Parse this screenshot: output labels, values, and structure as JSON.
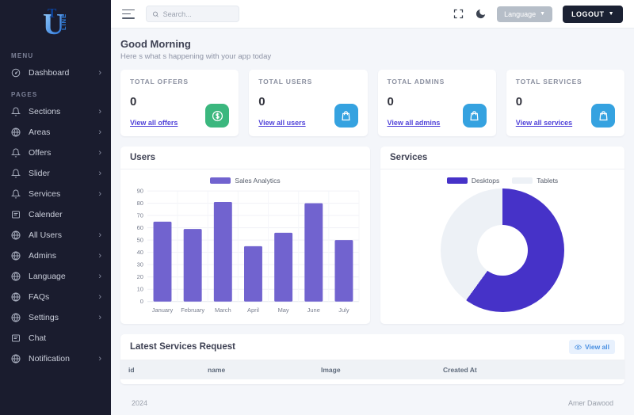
{
  "app": {
    "logo_main": "U",
    "logo_top": "T",
    "logo_side": "LINE"
  },
  "topbar": {
    "search_placeholder": "Search...",
    "language_label": "Language",
    "logout_label": "LOGOUT"
  },
  "sidebar": {
    "sections": [
      {
        "label": "MENU",
        "items": [
          {
            "label": "Dashboard",
            "icon": "speedometer-icon",
            "chevron": true
          }
        ]
      },
      {
        "label": "PAGES",
        "items": [
          {
            "label": "Sections",
            "icon": "bell-icon",
            "chevron": true
          },
          {
            "label": "Areas",
            "icon": "globe-icon",
            "chevron": true
          },
          {
            "label": "Offers",
            "icon": "bell-icon",
            "chevron": true
          },
          {
            "label": "Slider",
            "icon": "bell-icon",
            "chevron": true
          },
          {
            "label": "Services",
            "icon": "bell-icon",
            "chevron": true
          },
          {
            "label": "Calender",
            "icon": "card-icon",
            "chevron": false
          },
          {
            "label": "All Users",
            "icon": "globe-icon",
            "chevron": true
          },
          {
            "label": "Admins",
            "icon": "globe-icon",
            "chevron": true
          },
          {
            "label": "Language",
            "icon": "globe-icon",
            "chevron": true
          },
          {
            "label": "FAQs",
            "icon": "globe-icon",
            "chevron": true
          },
          {
            "label": "Settings",
            "icon": "globe-icon",
            "chevron": true
          },
          {
            "label": "Chat",
            "icon": "card-icon",
            "chevron": false
          },
          {
            "label": "Notification",
            "icon": "globe-icon",
            "chevron": true
          }
        ]
      }
    ]
  },
  "greeting": {
    "title": "Good Morning",
    "subtitle": "Here s what s happening with your app today"
  },
  "stat_cards": [
    {
      "label": "TOTAL OFFERS",
      "value": "0",
      "link": "View all offers",
      "icon": "dollar-icon",
      "icon_bg": "#3bb77e"
    },
    {
      "label": "TOTAL USERS",
      "value": "0",
      "link": "View all users",
      "icon": "bag-icon",
      "icon_bg": "#35a2e0"
    },
    {
      "label": "TOTAL ADMINS",
      "value": "0",
      "link": "View all admins",
      "icon": "bag-icon",
      "icon_bg": "#35a2e0"
    },
    {
      "label": "TOTAL SERVICES",
      "value": "0",
      "link": "View all services",
      "icon": "bag-icon",
      "icon_bg": "#35a2e0"
    }
  ],
  "chart_data": [
    {
      "type": "bar",
      "title": "Users",
      "legend": [
        "Sales Analytics"
      ],
      "legend_position": "top",
      "categories": [
        "January",
        "February",
        "March",
        "April",
        "May",
        "June",
        "July"
      ],
      "values": [
        65,
        59,
        81,
        45,
        56,
        80,
        50
      ],
      "xlabel": "",
      "ylabel": "",
      "ylim": [
        0,
        90
      ],
      "ytick_step": 10,
      "grid": true,
      "bar_color": "#7163cf"
    },
    {
      "type": "donut",
      "title": "Services",
      "legend_position": "top",
      "series": [
        {
          "name": "Desktops",
          "value": 60,
          "color": "#4632c8"
        },
        {
          "name": "Tablets",
          "value": 40,
          "color": "#edf1f6"
        }
      ]
    }
  ],
  "services_table": {
    "title": "Latest Services Request",
    "view_all_label": "View all",
    "columns": [
      "id",
      "name",
      "Image",
      "Created At"
    ],
    "rows": []
  },
  "footer": {
    "year": "2024",
    "author": "Amer Dawood"
  },
  "colors": {
    "sidebar_bg": "#1a1c2e",
    "content_bg": "#f4f6fa",
    "accent_link": "#5143d9",
    "bar_purple": "#7163cf",
    "donut_purple": "#4632c8",
    "donut_light": "#edf1f6",
    "stat_green": "#3bb77e",
    "stat_blue": "#35a2e0"
  }
}
